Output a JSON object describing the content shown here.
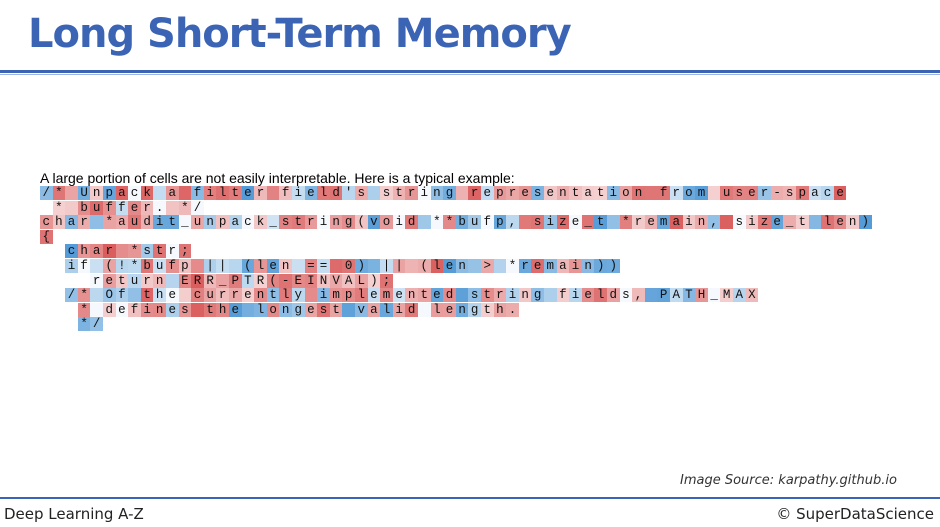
{
  "slide": {
    "title": "Long Short-Term Memory",
    "caption": "A large portion of cells are not easily interpretable. Here is a typical example:",
    "image_source": "Image Source: karpathy.github.io"
  },
  "footer": {
    "course": "Deep Learning A-Z",
    "copyright": "© SuperDataScience"
  },
  "colors": {
    "brand_blue": "#3c64b4",
    "activation_positive": "#d64a4a",
    "activation_negative": "#3f8fd2"
  },
  "code_lines": [
    "/* Unpack a filter field's string representation from user-space",
    " * buffer. */",
    "char *audit_unpack_string(void **bufp, size_t *remain, size_t len)",
    "{",
    "  char *str;",
    "  if (!*bufp || (len == 0) || (len > *remain))",
    "    return ERR_PTR(-EINVAL);",
    "  /* Of the currently implemented string fields, PATH_MAX",
    "   * defines the longest valid length.",
    "   */"
  ]
}
